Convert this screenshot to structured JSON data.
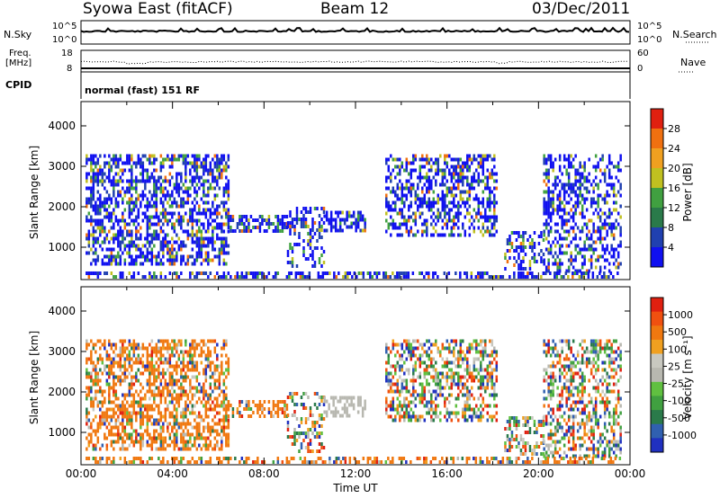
{
  "header": {
    "station": "Syowa East (fitACF)",
    "beam": "Beam 12",
    "date": "03/Dec/2011"
  },
  "noise_panel": {
    "left_label": "N.Sky",
    "right_label": "N.Search",
    "left_ticks": [
      "10^5",
      "10^0"
    ],
    "right_ticks": [
      "10^5",
      "10^0"
    ]
  },
  "freq_panel": {
    "left_label_1": "Freq.",
    "left_label_2": "[MHz]",
    "right_label": "Nave",
    "left_ticks": [
      "18",
      "8"
    ],
    "right_ticks": [
      "60",
      "0"
    ]
  },
  "cpid_panel": {
    "label": "CPID",
    "text": "normal (fast) 151 RF"
  },
  "chart_data": [
    {
      "type": "heatmap",
      "name": "power",
      "ylabel": "Slant Range [km]",
      "ylim": [
        200,
        4600
      ],
      "yticks": [
        "1000",
        "2000",
        "3000",
        "4000"
      ],
      "xlim": [
        0,
        24
      ],
      "colorbar": {
        "label": "Power [dB]",
        "ticks": [
          "4",
          "8",
          "12",
          "16",
          "20",
          "24",
          "28"
        ],
        "colors": [
          "#1010f0",
          "#2040b0",
          "#2a7a4a",
          "#40a040",
          "#c0c020",
          "#f0a020",
          "#f07010",
          "#e02010"
        ]
      }
    },
    {
      "type": "heatmap",
      "name": "velocity",
      "ylabel": "Slant Range [km]",
      "ylim": [
        200,
        4600
      ],
      "yticks": [
        "1000",
        "2000",
        "3000",
        "4000"
      ],
      "xlabel": "Time UT",
      "xticks": [
        "00:00",
        "04:00",
        "08:00",
        "12:00",
        "16:00",
        "20:00",
        "00:00"
      ],
      "xlim": [
        0,
        24
      ],
      "colorbar": {
        "label": "Velocity  [m s⁻¹]",
        "ticks": [
          "1000",
          "500",
          "100",
          "25",
          "-25",
          "-100",
          "-500",
          "-1000"
        ],
        "colors": [
          "#2030c0",
          "#3060b0",
          "#2a7a4a",
          "#40a040",
          "#60c040",
          "#b8b8b0",
          "#c8c8c0",
          "#f0a020",
          "#f07810",
          "#f05010",
          "#e02010"
        ]
      }
    }
  ]
}
